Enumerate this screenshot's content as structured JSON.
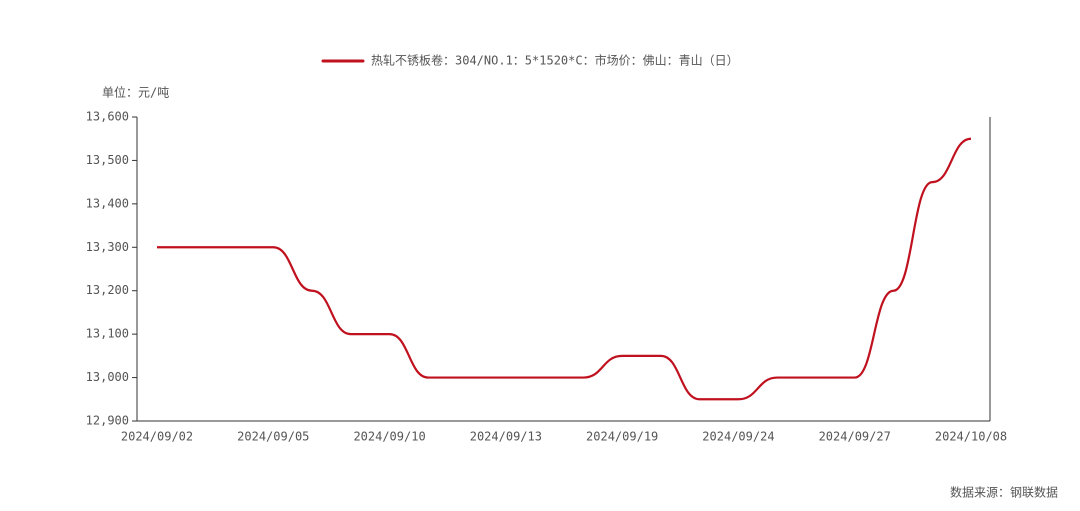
{
  "chart_data": {
    "type": "line",
    "legend_label": "热轧不锈板卷：304/NO.1：5*1520*C：市场价：佛山：青山（日）",
    "unit_label": "单位：元/吨",
    "source": "数据来源：钢联数据",
    "categories": [
      "2024/09/02",
      null,
      null,
      "2024/09/05",
      null,
      null,
      "2024/09/10",
      null,
      null,
      "2024/09/13",
      null,
      null,
      "2024/09/19",
      null,
      null,
      "2024/09/24",
      null,
      null,
      "2024/09/27",
      null,
      null,
      "2024/10/08"
    ],
    "series": [
      {
        "name": "热轧不锈板卷：304/NO.1：5*1520*C：市场价：佛山：青山（日）",
        "color": "#c0111f",
        "values": [
          13300,
          13300,
          13300,
          13300,
          13200,
          13100,
          13100,
          13000,
          13000,
          13000,
          13000,
          13000,
          13050,
          13050,
          12950,
          12950,
          13000,
          13000,
          13000,
          13200,
          13450,
          13550
        ]
      }
    ],
    "ylim": [
      12900,
      13600
    ],
    "yticks": [
      {
        "value": 12900,
        "label": "12,900"
      },
      {
        "value": 13000,
        "label": "13,000"
      },
      {
        "value": 13100,
        "label": "13,100"
      },
      {
        "value": 13200,
        "label": "13,200"
      },
      {
        "value": 13300,
        "label": "13,300"
      },
      {
        "value": 13400,
        "label": "13,400"
      },
      {
        "value": 13500,
        "label": "13,500"
      },
      {
        "value": 13600,
        "label": "13,600"
      }
    ]
  }
}
